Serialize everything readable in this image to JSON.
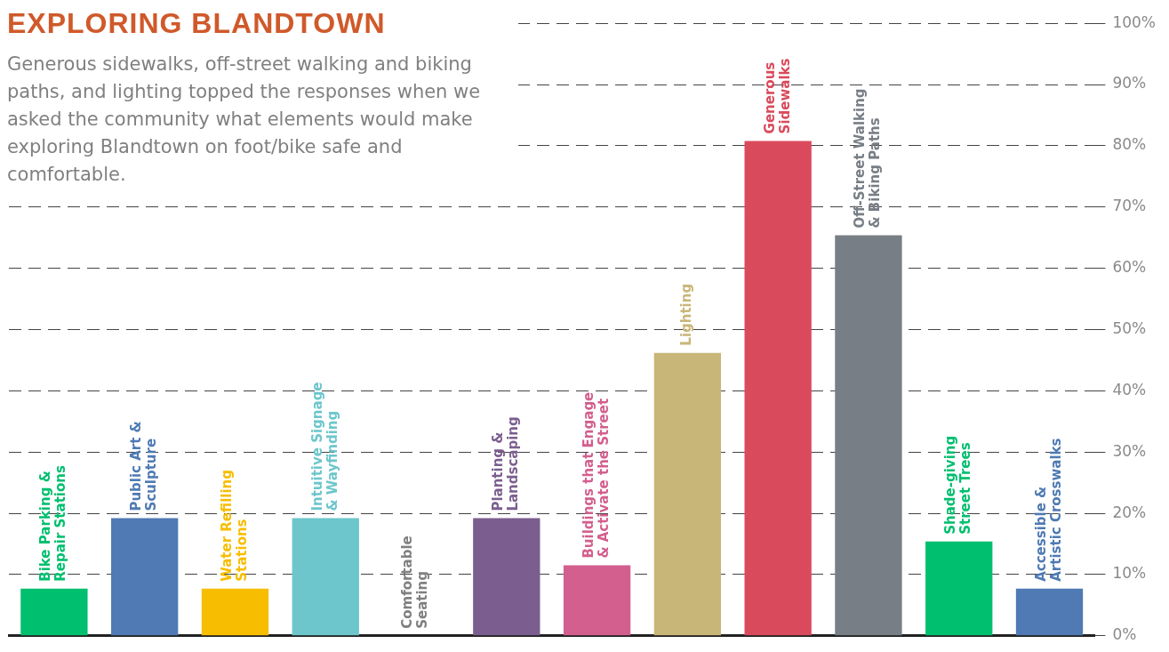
{
  "chart_data": {
    "type": "bar",
    "title": "EXPLORING BLANDTOWN",
    "subtitle": "Generous sidewalks, off-street walking and biking paths, and lighting topped the responses when we asked the community what elements would make exploring Blandtown on foot/bike safe and comfortable.",
    "categories": [
      "Bike Parking &\nRepair Stations",
      "Public Art &\nSculpture",
      "Water Refilling\nStations",
      "Intuitive Signage\n& Wayfinding",
      "Comfortable\nSeating",
      "Planting &\nLandscaping",
      "Buildings that Engage\n& Activate the Street",
      "Lighting",
      "Generous\nSidewalks",
      "Off-Street Walking\n& Biking Paths",
      "Shade-giving\nStreet Trees",
      "Accessible &\nArtistic Crosswalks"
    ],
    "values": [
      7.7,
      19.2,
      7.7,
      19.2,
      0,
      19.2,
      11.5,
      46.2,
      80.8,
      65.4,
      15.4,
      7.7
    ],
    "colors": [
      "#00bf6f",
      "#4f7ab3",
      "#f7bd00",
      "#6cc6cb",
      "#808080",
      "#7b5e8f",
      "#d35f8e",
      "#c8b678",
      "#d94b5c",
      "#787e86",
      "#00bf6f",
      "#4f7ab3"
    ],
    "ylim": [
      0,
      100
    ],
    "yticks": [
      {
        "value": 0,
        "label": "0%"
      },
      {
        "value": 10,
        "label": "10%"
      },
      {
        "value": 20,
        "label": "20%"
      },
      {
        "value": 30,
        "label": "30%"
      },
      {
        "value": 40,
        "label": "40%"
      },
      {
        "value": 50,
        "label": "50%"
      },
      {
        "value": 60,
        "label": "60%"
      },
      {
        "value": 70,
        "label": "70%"
      },
      {
        "value": 80,
        "label": "80%"
      },
      {
        "value": 90,
        "label": "90%"
      },
      {
        "value": 100,
        "label": "100%"
      }
    ],
    "grid": "y",
    "legend": false,
    "tick_labels": "y"
  }
}
